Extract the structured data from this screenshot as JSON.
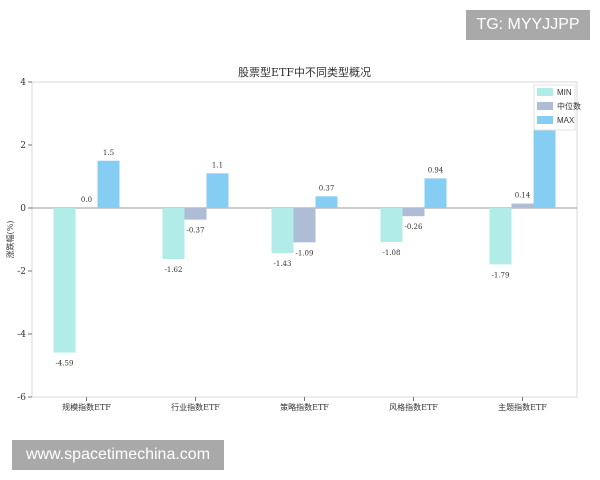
{
  "chart_data": {
    "type": "bar",
    "title": "股票型ETF中不同类型概况",
    "xlabel": "",
    "ylabel": "涨跌幅(%)",
    "ylim": [
      -6,
      4
    ],
    "yticks": [
      -6,
      -4,
      -2,
      0,
      2,
      4
    ],
    "categories": [
      "规模指数ETF",
      "行业指数ETF",
      "策略指数ETF",
      "风格指数ETF",
      "主题指数ETF"
    ],
    "series": [
      {
        "name": "MIN",
        "color": "#b2ece8",
        "values": [
          -4.59,
          -1.62,
          -1.43,
          -1.08,
          -1.79
        ],
        "labels": [
          "-4.59",
          "-1.62",
          "-1.43",
          "-1.08",
          "-1.79"
        ]
      },
      {
        "name": "中位数",
        "color": "#aebcd6",
        "values": [
          0.0,
          -0.37,
          -1.09,
          -0.26,
          0.14
        ],
        "labels": [
          "0.0",
          "-0.37",
          "-1.09",
          "-0.26",
          "0.14"
        ]
      },
      {
        "name": "MAX",
        "color": "#86cdf4",
        "values": [
          1.5,
          1.1,
          0.37,
          0.94,
          2.6
        ],
        "labels": [
          "1.5",
          "1.1",
          "0.37",
          "0.94",
          ""
        ]
      }
    ],
    "legend_position": "top-right",
    "grid": false
  },
  "watermarks": {
    "top": "TG: MYYJJPP",
    "bottom": "www.spacetimechina.com"
  }
}
